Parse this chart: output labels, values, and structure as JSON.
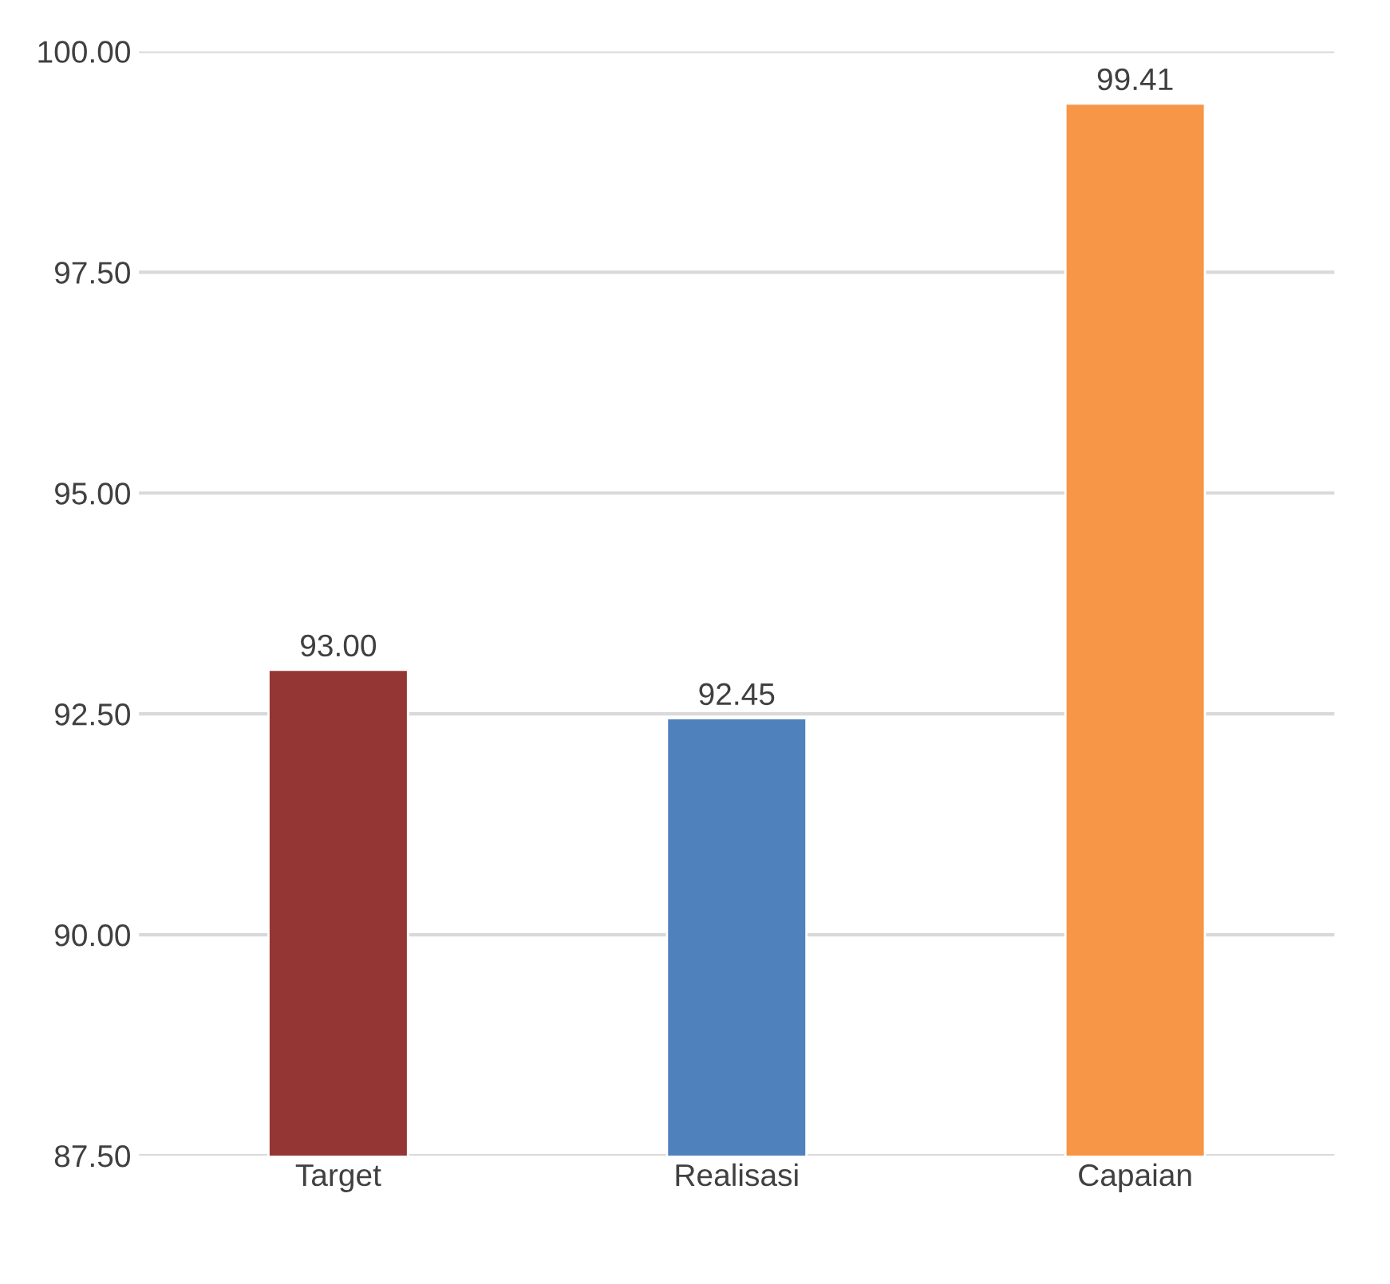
{
  "chart_data": {
    "type": "bar",
    "categories": [
      "Target",
      "Realisasi",
      "Capaian"
    ],
    "values": [
      93.0,
      92.45,
      99.41
    ],
    "colors": [
      "#943634",
      "#4f81bd",
      "#f79646"
    ],
    "value_labels": [
      "93.00",
      "92.45",
      "99.41"
    ],
    "ylim": [
      87.5,
      100
    ],
    "yticks": [
      {
        "value": 87.5,
        "label": "87.50"
      },
      {
        "value": 90,
        "label": "90.00"
      },
      {
        "value": 92.5,
        "label": "92.50"
      },
      {
        "value": 95,
        "label": "95.00"
      },
      {
        "value": 97.5,
        "label": "97.50"
      },
      {
        "value": 100,
        "label": "100.00"
      }
    ],
    "grid": "y"
  }
}
